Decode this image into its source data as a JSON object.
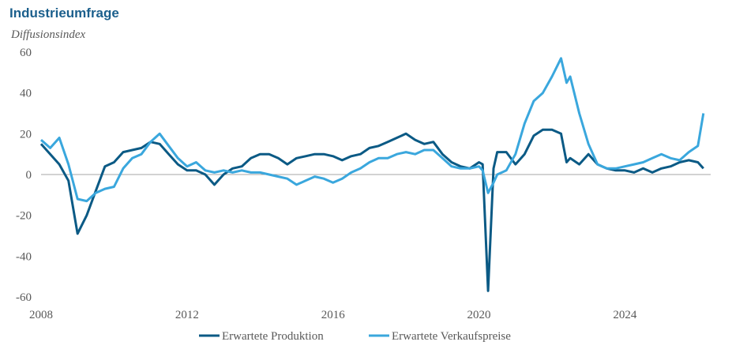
{
  "chart_data": {
    "type": "line",
    "title": "Industrieumfrage",
    "y_axis_label": "Diffusionsindex",
    "x": [
      2008,
      2008.25,
      2008.5,
      2008.75,
      2009,
      2009.25,
      2009.5,
      2009.75,
      2010,
      2010.25,
      2010.5,
      2010.75,
      2011,
      2011.25,
      2011.5,
      2011.75,
      2012,
      2012.25,
      2012.5,
      2012.75,
      2013,
      2013.25,
      2013.5,
      2013.75,
      2014,
      2014.25,
      2014.5,
      2014.75,
      2015,
      2015.25,
      2015.5,
      2015.75,
      2016,
      2016.25,
      2016.5,
      2016.75,
      2017,
      2017.25,
      2017.5,
      2017.75,
      2018,
      2018.25,
      2018.5,
      2018.75,
      2019,
      2019.25,
      2019.5,
      2019.75,
      2020,
      2020.1,
      2020.25,
      2020.4,
      2020.5,
      2020.75,
      2021,
      2021.25,
      2021.5,
      2021.75,
      2022,
      2022.25,
      2022.4,
      2022.5,
      2022.75,
      2023,
      2023.25,
      2023.5,
      2023.75,
      2024,
      2024.25,
      2024.5,
      2024.75,
      2025,
      2025.25,
      2025.5,
      2025.75,
      2026,
      2026.15
    ],
    "series": [
      {
        "name": "Erwartete Produktion",
        "color": "#0b5a85",
        "values": [
          15,
          10,
          5,
          -3,
          -29,
          -20,
          -8,
          4,
          6,
          11,
          12,
          13,
          16,
          15,
          10,
          5,
          2,
          2,
          0,
          -5,
          0,
          3,
          4,
          8,
          10,
          10,
          8,
          5,
          8,
          9,
          10,
          10,
          9,
          7,
          9,
          10,
          13,
          14,
          16,
          18,
          20,
          17,
          15,
          16,
          10,
          6,
          4,
          3,
          6,
          5,
          -57,
          3,
          11,
          11,
          5,
          10,
          19,
          22,
          22,
          20,
          6,
          8,
          5,
          10,
          5,
          3,
          2,
          2,
          1,
          3,
          1,
          3,
          4,
          6,
          7,
          6,
          3
        ]
      },
      {
        "name": "Erwartete Verkaufspreise",
        "color": "#3aa7dd",
        "values": [
          17,
          13,
          18,
          5,
          -12,
          -13,
          -9,
          -7,
          -6,
          3,
          8,
          10,
          16,
          20,
          14,
          8,
          4,
          6,
          2,
          1,
          2,
          1,
          2,
          1,
          1,
          0,
          -1,
          -2,
          -5,
          -3,
          -1,
          -2,
          -4,
          -2,
          1,
          3,
          6,
          8,
          8,
          10,
          11,
          10,
          12,
          12,
          8,
          4,
          3,
          3,
          4,
          2,
          -9,
          -4,
          0,
          2,
          10,
          25,
          36,
          40,
          48,
          57,
          45,
          48,
          30,
          15,
          5,
          3,
          3,
          4,
          5,
          6,
          8,
          10,
          8,
          7,
          11,
          14,
          30
        ]
      }
    ],
    "xlim": [
      2008,
      2026.35
    ],
    "xticks": [
      2008,
      2012,
      2016,
      2020,
      2024
    ],
    "ylim": [
      -60,
      60
    ],
    "yticks": [
      -60,
      -40,
      -20,
      0,
      20,
      40,
      60
    ],
    "legend": "bottom"
  }
}
